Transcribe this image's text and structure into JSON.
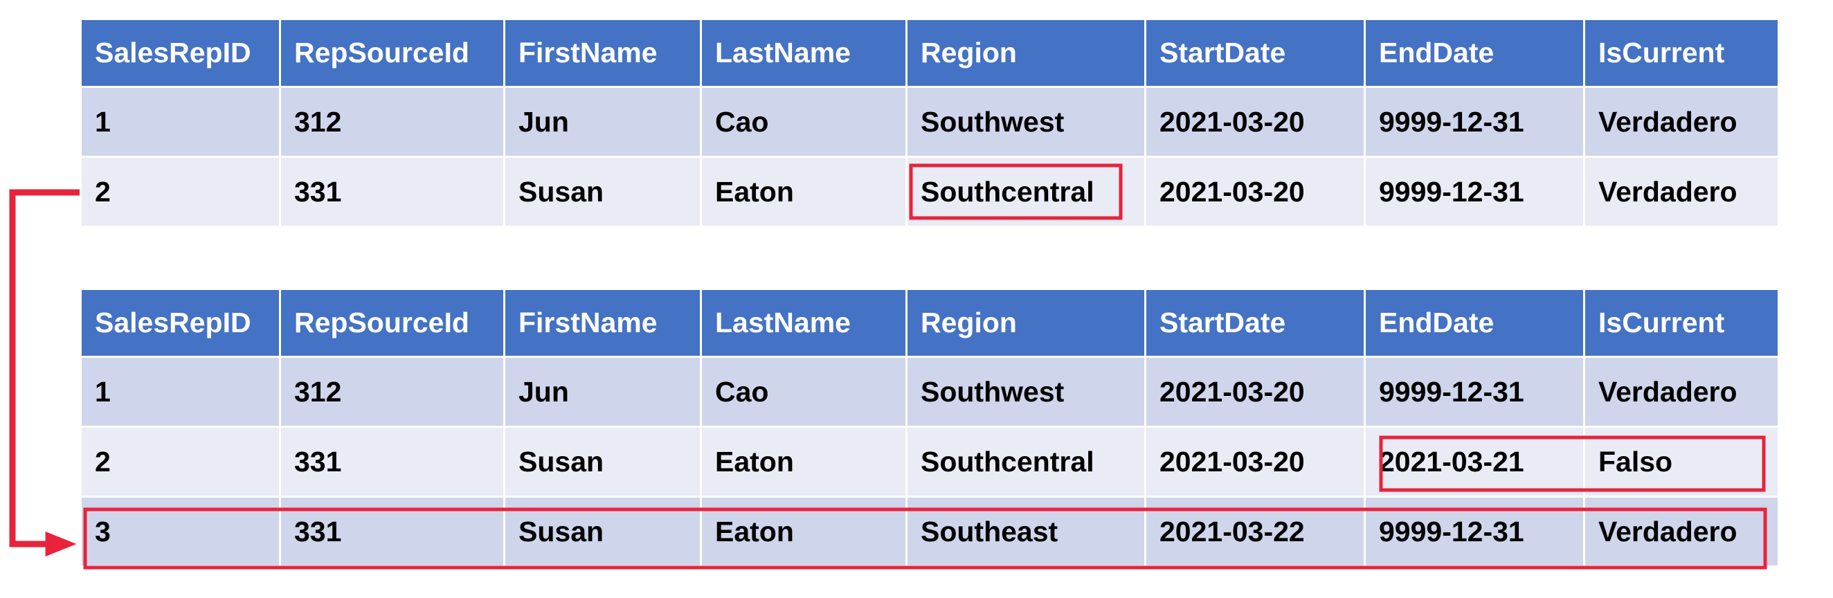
{
  "columns": [
    "SalesRepID",
    "RepSourceId",
    "FirstName",
    "LastName",
    "Region",
    "StartDate",
    "EndDate",
    "IsCurrent"
  ],
  "before_table": {
    "rows": [
      [
        "1",
        "312",
        "Jun",
        "Cao",
        "Southwest",
        "2021-03-20",
        "9999-12-31",
        "Verdadero"
      ],
      [
        "2",
        "331",
        "Susan",
        "Eaton",
        "Southcentral",
        "2021-03-20",
        "9999-12-31",
        "Verdadero"
      ]
    ]
  },
  "after_table": {
    "rows": [
      [
        "1",
        "312",
        "Jun",
        "Cao",
        "Southwest",
        "2021-03-20",
        "9999-12-31",
        "Verdadero"
      ],
      [
        "2",
        "331",
        "Susan",
        "Eaton",
        "Southcentral",
        "2021-03-20",
        "2021-03-21",
        "Falso"
      ],
      [
        "3",
        "331",
        "Susan",
        "Eaton",
        "Southeast",
        "2021-03-22",
        "9999-12-31",
        "Verdadero"
      ]
    ]
  },
  "colors": {
    "header_bg": "#4472c4",
    "row_odd_bg": "#cfd5ea",
    "row_even_bg": "#e9ebf5",
    "highlight": "#e8233b"
  },
  "highlights": [
    "changed-region-cell",
    "expired-row-end-fields",
    "new-version-row"
  ]
}
